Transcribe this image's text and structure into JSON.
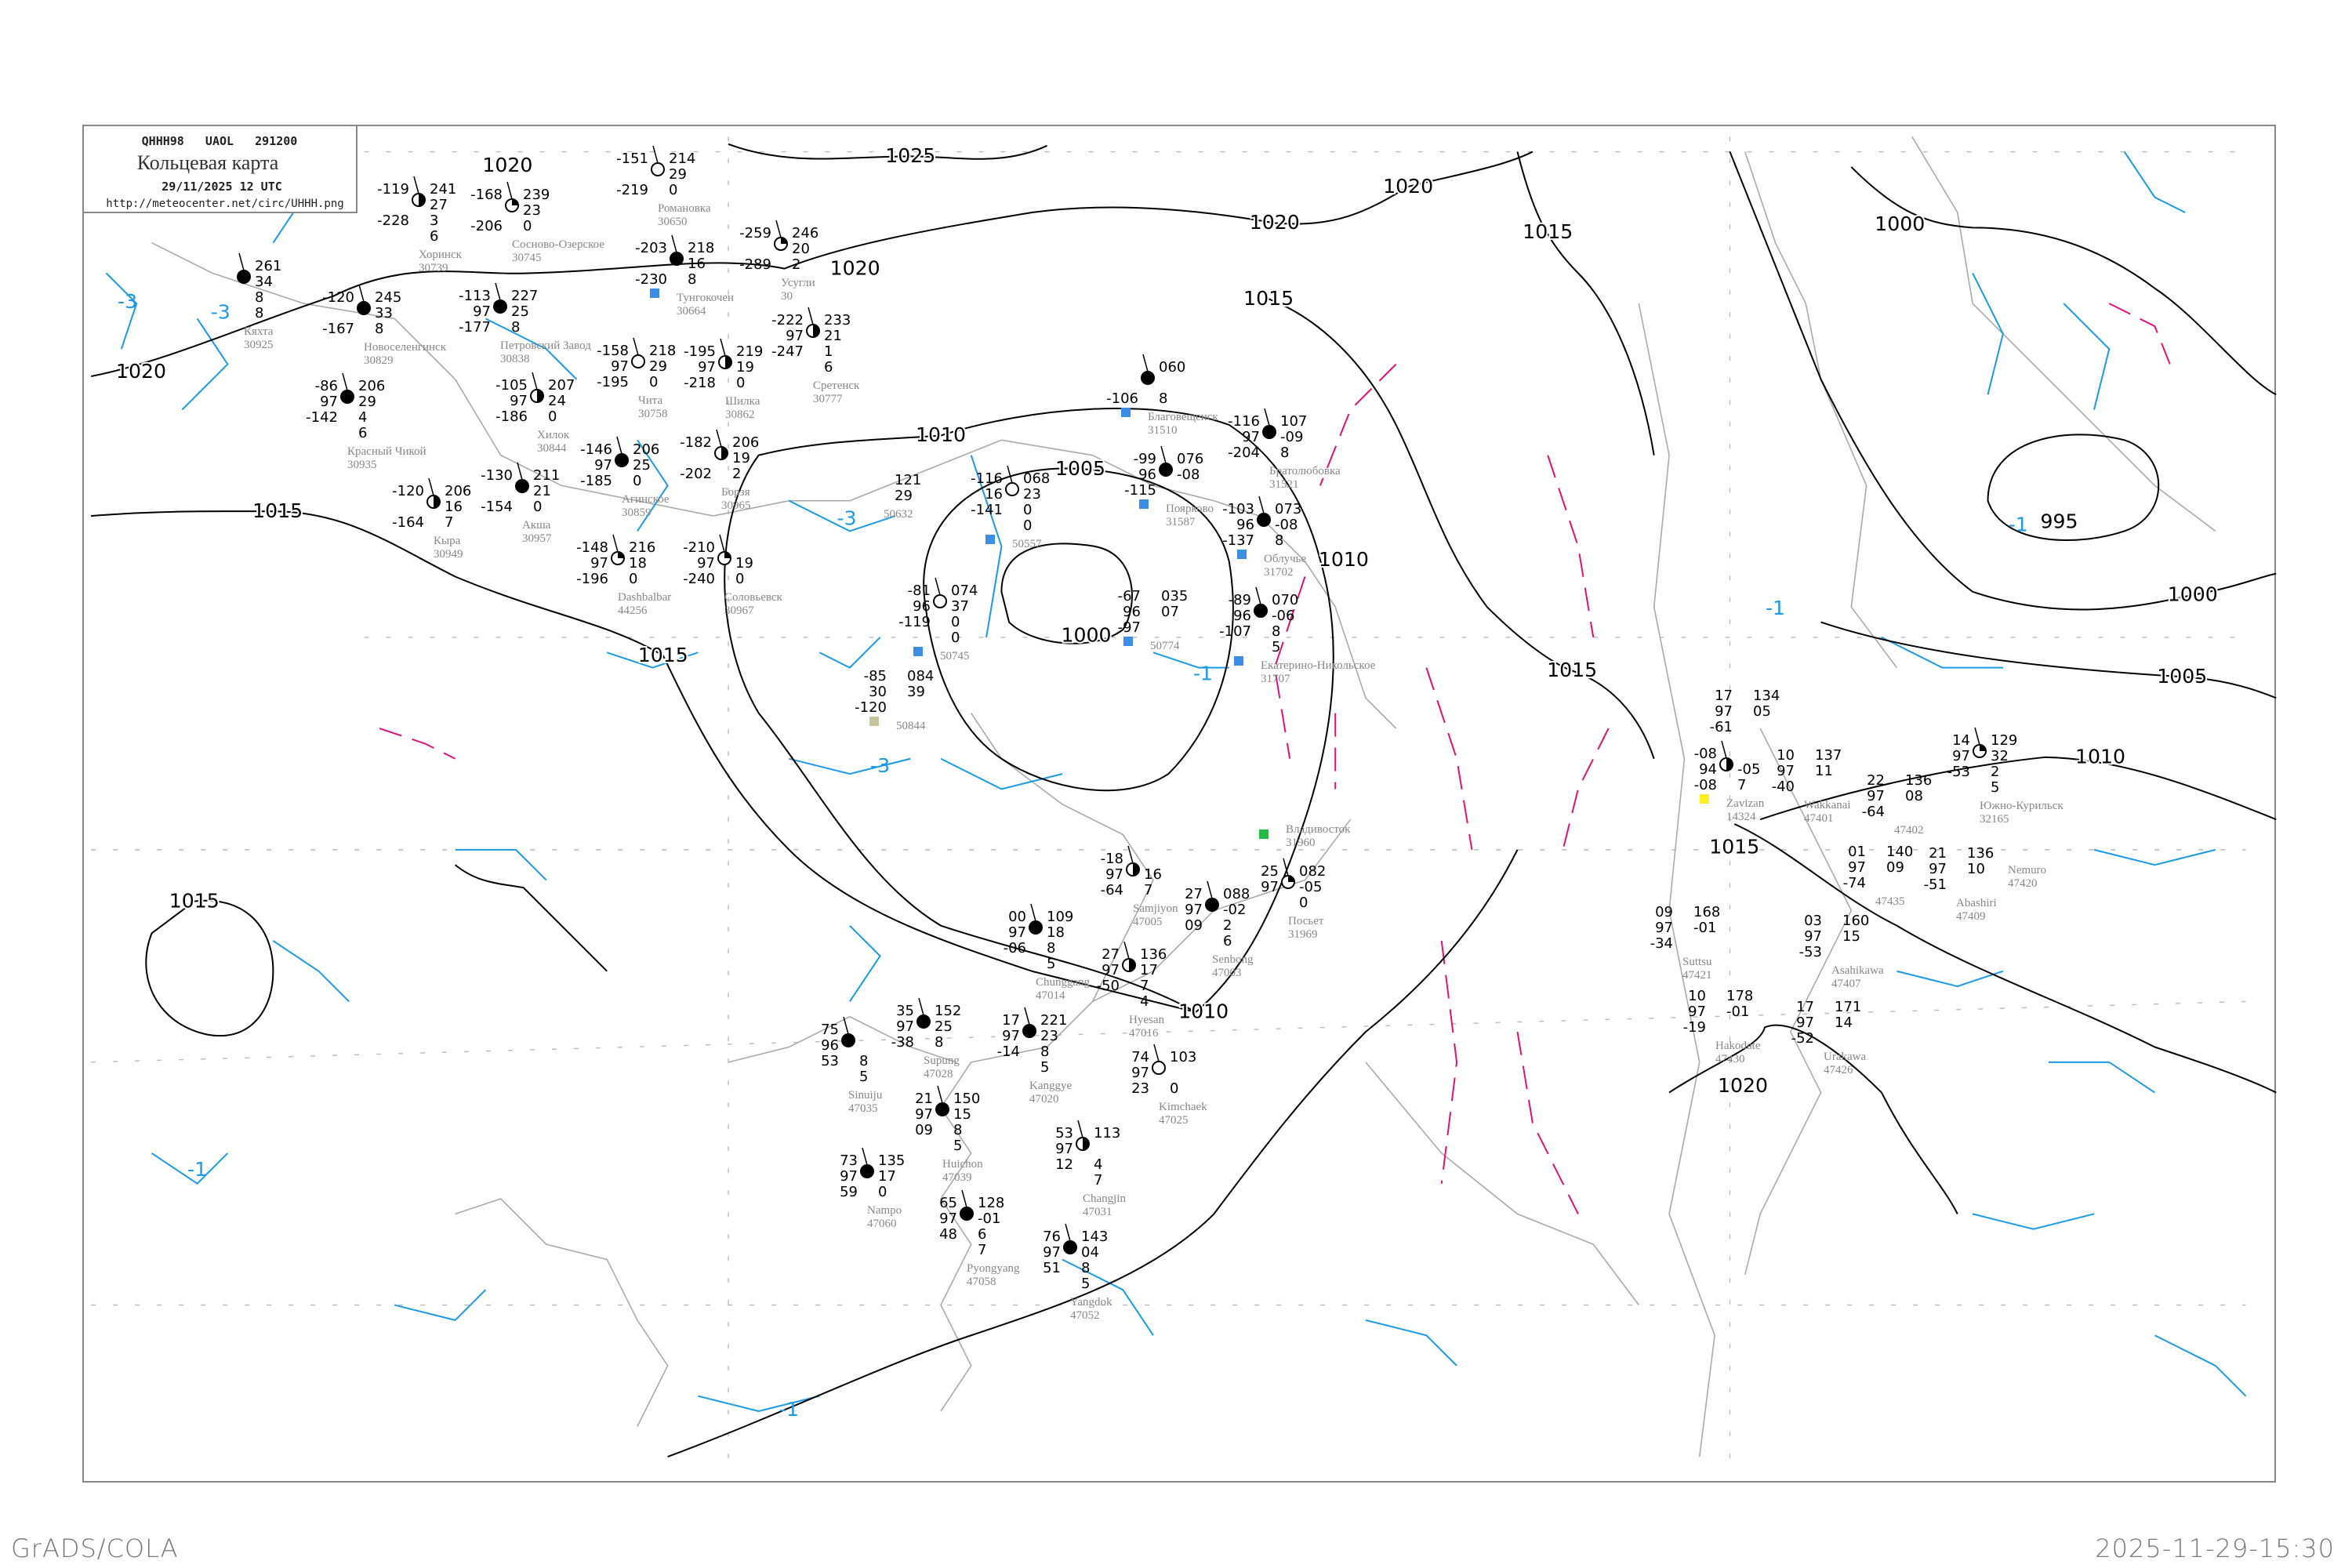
{
  "header": {
    "code_line": "QHHH98   UAOL   291200",
    "title": "Кольцевая карта",
    "datetime": "29/11/2025 12 UTC",
    "url": "http://meteocenter.net/circ/UHHH.png"
  },
  "footer": {
    "left": "GrADS/COLA",
    "right": "2025-11-29-15:30"
  },
  "colors": {
    "isobar": "#000000",
    "isotherm": "#1a9ae8",
    "isotherm_zero": "#e0107a",
    "coastline": "#aaaaaa",
    "snow_marker": "#3a8ee6",
    "green_marker": "#22bb44"
  },
  "isobar_labels": [
    "1025",
    "1020",
    "1020",
    "1020",
    "1020",
    "1015",
    "1015",
    "1015",
    "1015",
    "1015",
    "1010",
    "1010",
    "1010",
    "1010",
    "1005",
    "1005",
    "1000",
    "1000",
    "1000",
    "995",
    "1015",
    "1020",
    "1020",
    "1015"
  ],
  "isotherm_labels": [
    "-3",
    "-3",
    "-3",
    "-1",
    "-1",
    "-3",
    "-1",
    "-1",
    "-1"
  ],
  "stations": [
    {
      "name": "Хоринск",
      "index": "30739",
      "cover": "half",
      "left": [
        "-119",
        "",
        "-228"
      ],
      "right": [
        "241",
        "27",
        "3",
        "6"
      ]
    },
    {
      "name": "Сосново-Озерское",
      "index": "30745",
      "cover": "quarter",
      "left": [
        "-168",
        "",
        "-206"
      ],
      "right": [
        "239",
        "23",
        "0"
      ]
    },
    {
      "name": "Романовка",
      "index": "30650",
      "cover": "empty",
      "left": [
        "-151",
        "",
        "-219"
      ],
      "right": [
        "214",
        "29",
        "0"
      ]
    },
    {
      "name": "Тунгокочен",
      "index": "30664",
      "cover": "full",
      "left": [
        "-203",
        "",
        "-230"
      ],
      "right": [
        "218",
        "16",
        "8"
      ],
      "marker": "snow"
    },
    {
      "name": "Новоселенгинск",
      "index": "30829",
      "cover": "full",
      "left": [
        "-120",
        "",
        "-167"
      ],
      "right": [
        "245",
        "33",
        "8"
      ]
    },
    {
      "name": "Петровский Завод",
      "index": "30838",
      "cover": "full",
      "left": [
        "-113",
        "97",
        "-177"
      ],
      "right": [
        "227",
        "25",
        "8"
      ]
    },
    {
      "name": "Кяхта",
      "index": "30925",
      "cover": "full",
      "left": [
        "",
        "",
        ""
      ],
      "right": [
        "261",
        "34",
        "8",
        "8"
      ]
    },
    {
      "name": "Красный Чикой",
      "index": "30935",
      "cover": "full",
      "left": [
        "-86",
        "97",
        "-142"
      ],
      "right": [
        "206",
        "29",
        "4",
        "6"
      ]
    },
    {
      "name": "Хилок",
      "index": "30844",
      "cover": "half",
      "left": [
        "-105",
        "97",
        "-186"
      ],
      "right": [
        "207",
        "24",
        "0"
      ]
    },
    {
      "name": "Чита",
      "index": "30758",
      "cover": "empty",
      "left": [
        "-158",
        "97",
        "-195"
      ],
      "right": [
        "218",
        "29",
        "0"
      ]
    },
    {
      "name": "Агинское",
      "index": "30859",
      "cover": "full",
      "left": [
        "-146",
        "97",
        "-185"
      ],
      "right": [
        "206",
        "25",
        "0"
      ]
    },
    {
      "name": "Шилка",
      "index": "30862",
      "cover": "half",
      "left": [
        "-195",
        "97",
        "-218"
      ],
      "right": [
        "219",
        "19",
        "0"
      ]
    },
    {
      "name": "Усугли",
      "index": "30",
      "cover": "quarter",
      "left": [
        "-259",
        "",
        "-289"
      ],
      "right": [
        "246",
        "20",
        "2"
      ]
    },
    {
      "name": "Сретенск",
      "index": "30777",
      "cover": "half",
      "left": [
        "-222",
        "97",
        "-247"
      ],
      "right": [
        "233",
        "21",
        "1",
        "6"
      ]
    },
    {
      "name": "Акша",
      "index": "30957",
      "cover": "full",
      "left": [
        "-130",
        "",
        "-154"
      ],
      "right": [
        "211",
        "21",
        "0"
      ]
    },
    {
      "name": "Кыра",
      "index": "30949",
      "cover": "half",
      "left": [
        "-120",
        "",
        "-164"
      ],
      "right": [
        "206",
        "16",
        "7"
      ]
    },
    {
      "name": "Dashbalbar",
      "index": "44256",
      "cover": "quarter",
      "left": [
        "-148",
        "97",
        "-196"
      ],
      "right": [
        "216",
        "18",
        "0"
      ]
    },
    {
      "name": "Борзя",
      "index": "30965",
      "cover": "half",
      "left": [
        "-182",
        "",
        "-202"
      ],
      "right": [
        "206",
        "19",
        "2"
      ]
    },
    {
      "name": "Соловьевск",
      "index": "30967",
      "cover": "quarter",
      "left": [
        "-210",
        "97",
        "-240"
      ],
      "right": [
        "",
        "19",
        "0"
      ]
    },
    {
      "name": "",
      "index": "50557",
      "cover": "empty",
      "left": [
        "-116",
        "16",
        "-141"
      ],
      "right": [
        "068",
        "23",
        "0",
        "0"
      ],
      "marker": "snow"
    },
    {
      "name": "",
      "index": "50745",
      "cover": "empty",
      "left": [
        "-81",
        "96",
        "-119"
      ],
      "right": [
        "074",
        "37",
        "0",
        "0"
      ],
      "marker": "snow"
    },
    {
      "name": "",
      "index": "50844",
      "cover": "none",
      "left": [
        "-85",
        "30",
        "-120"
      ],
      "right": [
        "084",
        "39"
      ],
      "marker": "haze"
    },
    {
      "name": "",
      "index": "50774",
      "cover": "none",
      "left": [
        "-67",
        "96",
        "-97"
      ],
      "right": [
        "035",
        "07"
      ],
      "marker": "snow"
    },
    {
      "name": "",
      "index": "50632",
      "cover": "none",
      "left": [
        "",
        "",
        ""
      ],
      "right": [
        "121",
        "29"
      ]
    },
    {
      "name": "Екатерино-Никольское",
      "index": "31707",
      "cover": "full",
      "left": [
        "-89",
        "96",
        "-107"
      ],
      "right": [
        "070",
        "-06",
        "8",
        "5"
      ],
      "marker": "snow"
    },
    {
      "name": "Облучье",
      "index": "31702",
      "cover": "full",
      "left": [
        "-103",
        "96",
        "-137"
      ],
      "right": [
        "073",
        "-08",
        "8"
      ],
      "marker": "snow"
    },
    {
      "name": "Братолюбовка",
      "index": "31521",
      "cover": "full",
      "left": [
        "-116",
        "97",
        "-204"
      ],
      "right": [
        "107",
        "-09",
        "8"
      ]
    },
    {
      "name": "Поярково",
      "index": "31587",
      "cover": "full",
      "left": [
        "-99",
        "96",
        "-115"
      ],
      "right": [
        "076",
        "-08"
      ],
      "marker": "snow"
    },
    {
      "name": "Благовещенск",
      "index": "31510",
      "cover": "full",
      "left": [
        "",
        "",
        "-106"
      ],
      "right": [
        "060",
        "",
        "8"
      ],
      "marker": "snow"
    },
    {
      "name": "Zavizan",
      "index": "14324",
      "cover": "half",
      "left": [
        "-08",
        "94",
        "-08"
      ],
      "right": [
        "",
        "-05",
        "7"
      ],
      "marker": "yellow"
    },
    {
      "name": "",
      "index": "",
      "cover": "none",
      "left": [
        "17",
        "97",
        "-61"
      ],
      "right": [
        "134",
        "05"
      ]
    },
    {
      "name": "Wakkanai",
      "index": "47401",
      "cover": "none",
      "left": [
        "10",
        "97",
        "-40"
      ],
      "right": [
        "137",
        "11"
      ]
    },
    {
      "name": "",
      "index": "47402",
      "cover": "none",
      "left": [
        "22",
        "97",
        "-64"
      ],
      "right": [
        "136",
        "08"
      ]
    },
    {
      "name": "",
      "index": "47435",
      "cover": "none",
      "left": [
        "01",
        "97",
        "-74"
      ],
      "right": [
        "140",
        "09"
      ]
    },
    {
      "name": "Asahikawa",
      "index": "47407",
      "cover": "none",
      "left": [
        "03",
        "97",
        "-53"
      ],
      "right": [
        "160",
        "15"
      ]
    },
    {
      "name": "Abashiri",
      "index": "47409",
      "cover": "none",
      "left": [
        "21",
        "97",
        "-51"
      ],
      "right": [
        "136",
        "10"
      ]
    },
    {
      "name": "Южно-Курильск",
      "index": "32165",
      "cover": "quarter",
      "left": [
        "14",
        "97",
        "-53"
      ],
      "right": [
        "129",
        "32",
        "2",
        "5"
      ]
    },
    {
      "name": "Suttsu",
      "index": "47421",
      "cover": "none",
      "left": [
        "09",
        "97",
        "-34"
      ],
      "right": [
        "168",
        "-01"
      ]
    },
    {
      "name": "Urakawa",
      "index": "47426",
      "cover": "none",
      "left": [
        "17",
        "97",
        "-52"
      ],
      "right": [
        "171",
        "14"
      ]
    },
    {
      "name": "Hakodate",
      "index": "47430",
      "cover": "none",
      "left": [
        "10",
        "97",
        "-19"
      ],
      "right": [
        "178",
        "-01"
      ]
    },
    {
      "name": "Nemuro",
      "index": "47420",
      "cover": "none",
      "left": [
        "",
        "",
        ""
      ],
      "right": []
    },
    {
      "name": "Chunggang",
      "index": "47014",
      "cover": "full",
      "left": [
        "00",
        "97",
        "-06"
      ],
      "right": [
        "109",
        "18",
        "8",
        "5"
      ]
    },
    {
      "name": "Hyesan",
      "index": "47016",
      "cover": "half",
      "left": [
        "27",
        "97",
        "-50"
      ],
      "right": [
        "136",
        "17",
        "7",
        "4"
      ]
    },
    {
      "name": "Samjiyon",
      "index": "47005",
      "cover": "half",
      "left": [
        "-18",
        "97",
        "-64"
      ],
      "right": [
        "",
        "16",
        "7"
      ]
    },
    {
      "name": "Kanggye",
      "index": "47020",
      "cover": "full",
      "left": [
        "17",
        "97",
        "-14"
      ],
      "right": [
        "221",
        "23",
        "8",
        "5"
      ]
    },
    {
      "name": "Supung",
      "index": "47028",
      "cover": "full",
      "left": [
        "35",
        "97",
        "-38"
      ],
      "right": [
        "152",
        "25",
        "8"
      ]
    },
    {
      "name": "Sinuiju",
      "index": "47035",
      "cover": "full",
      "left": [
        "75",
        "96",
        "53"
      ],
      "right": [
        "",
        "",
        "8",
        "5"
      ]
    },
    {
      "name": "Huichon",
      "index": "47039",
      "cover": "full",
      "left": [
        "21",
        "97",
        "09"
      ],
      "right": [
        "150",
        "15",
        "8",
        "5"
      ]
    },
    {
      "name": "Kimchaek",
      "index": "47025",
      "cover": "empty",
      "left": [
        "74",
        "97",
        "23"
      ],
      "right": [
        "103",
        "",
        "0"
      ]
    },
    {
      "name": "Changjin",
      "index": "47031",
      "cover": "half",
      "left": [
        "53",
        "97",
        "12"
      ],
      "right": [
        "113",
        "",
        "4",
        "7"
      ]
    },
    {
      "name": "Pyongyang",
      "index": "47058",
      "cover": "full",
      "left": [
        "65",
        "97",
        "48"
      ],
      "right": [
        "128",
        "-01",
        "6",
        "7"
      ]
    },
    {
      "name": "Yangdok",
      "index": "47052",
      "cover": "full",
      "left": [
        "76",
        "97",
        "51"
      ],
      "right": [
        "143",
        "04",
        "8",
        "5"
      ]
    },
    {
      "name": "Nampo",
      "index": "47060",
      "cover": "full",
      "left": [
        "73",
        "97",
        "59"
      ],
      "right": [
        "135",
        "17",
        "0"
      ]
    },
    {
      "name": "Senbong",
      "index": "47003",
      "cover": "full",
      "left": [
        "27",
        "97",
        "09"
      ],
      "right": [
        "088",
        "-02",
        "2",
        "6"
      ]
    },
    {
      "name": "Посьет",
      "index": "31969",
      "cover": "quarter",
      "left": [
        "25",
        "97",
        ""
      ],
      "right": [
        "082",
        "-05",
        "0"
      ]
    },
    {
      "name": "Владивосток",
      "index": "31960",
      "cover": "none",
      "left": [
        "",
        "",
        ""
      ],
      "right": [],
      "marker": "green"
    }
  ]
}
